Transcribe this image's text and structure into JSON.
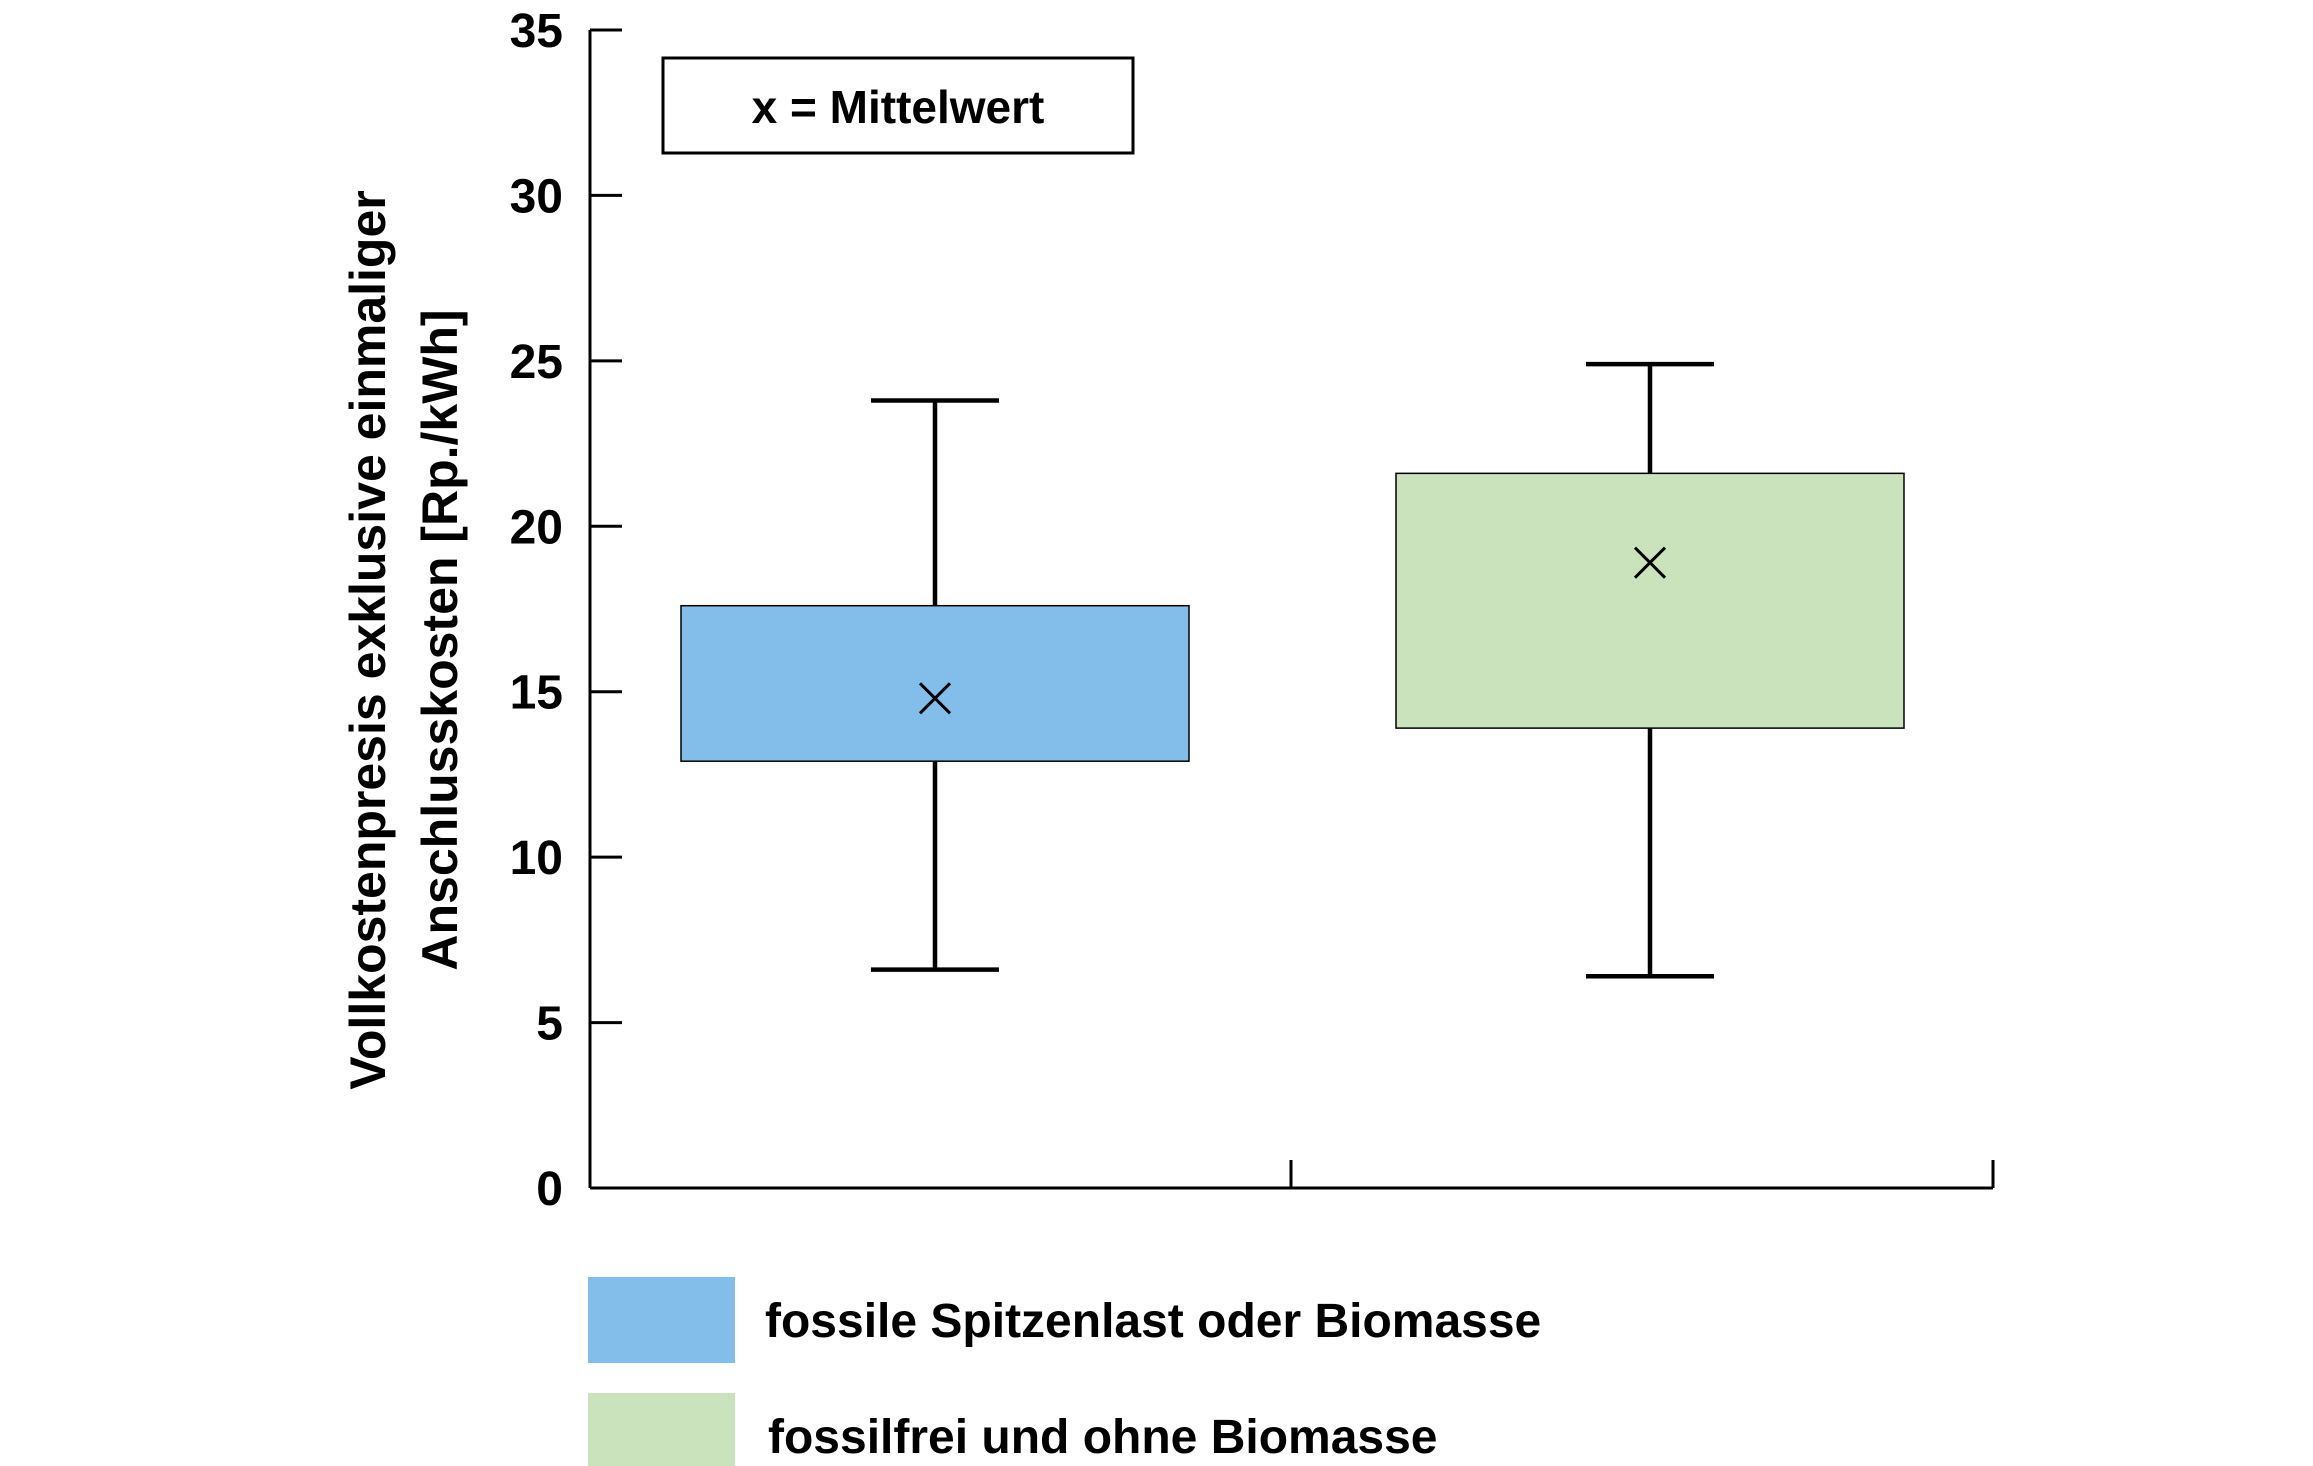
{
  "chart_data": {
    "type": "box",
    "title": "",
    "ylabel_lines": [
      "Vollkostenpresis exklusive einmaliger",
      "Anschlusskosten [Rp./kWh]"
    ],
    "ylim": [
      0,
      35
    ],
    "yticks": [
      0,
      5,
      10,
      15,
      20,
      25,
      30,
      35
    ],
    "grid": false,
    "annotation": "x = Mittelwert",
    "legend_position": "bottom",
    "series": [
      {
        "name": "fossile Spitzenlast oder Biomasse",
        "color": "#83bde9",
        "whisker_low": 6.6,
        "q1": 12.9,
        "q3": 17.6,
        "whisker_high": 23.8,
        "mean": 14.8
      },
      {
        "name": "fossilfrei und ohne Biomasse",
        "color": "#cbe3bd",
        "whisker_low": 6.4,
        "q1": 13.9,
        "q3": 21.6,
        "whisker_high": 24.9,
        "mean": 18.9
      }
    ]
  }
}
